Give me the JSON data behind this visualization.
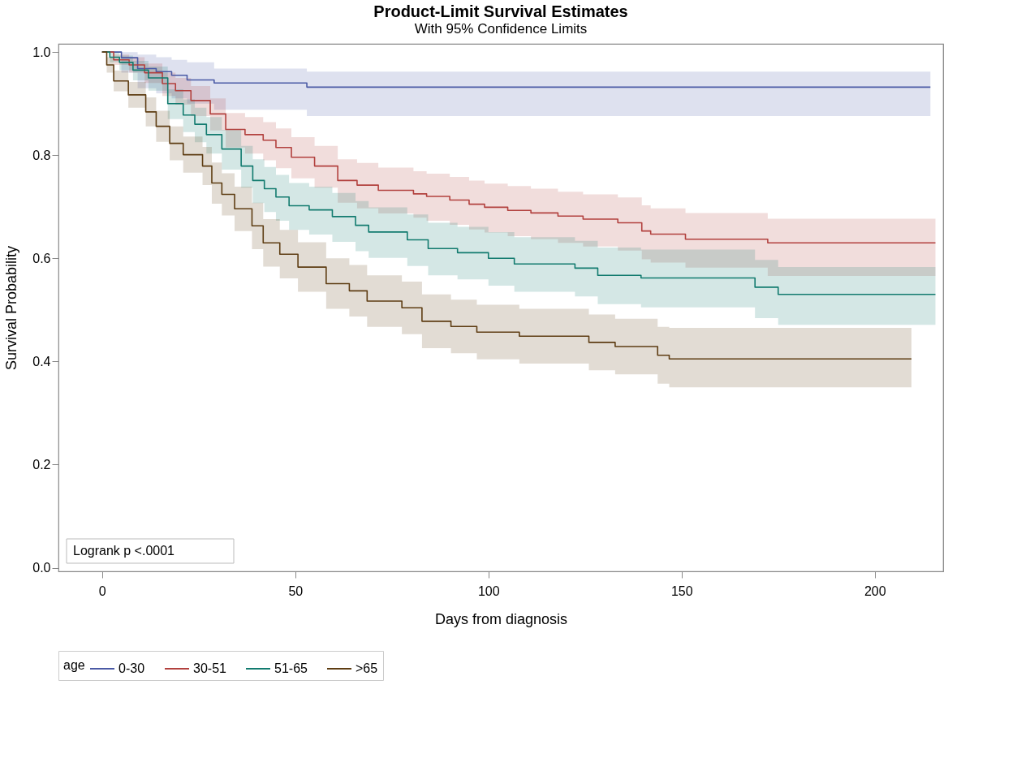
{
  "chart_data": {
    "type": "step",
    "title": "Product-Limit Survival Estimates",
    "subtitle": "With 95% Confidence Limits",
    "xlabel": "Days from diagnosis",
    "ylabel": "Survival Probability",
    "legend_title": "age",
    "legend": "bottom",
    "grid": false,
    "marker": "none",
    "line_style": "solid",
    "xlim": [
      -11.3,
      217.7
    ],
    "ylim": [
      -0.007,
      1.016
    ],
    "xticks": [
      0,
      50,
      100,
      150,
      200
    ],
    "yticks": [
      {
        "value": 0,
        "label": "0.0"
      },
      {
        "value": 0.2,
        "label": "0.2"
      },
      {
        "value": 0.4,
        "label": "0.4"
      },
      {
        "value": 0.6,
        "label": "0.6"
      },
      {
        "value": 0.8,
        "label": "0.8"
      },
      {
        "value": 1,
        "label": "1.0"
      }
    ],
    "annotations": [
      "Logrank p <.0001"
    ],
    "series": [
      {
        "name": "0-30",
        "color": "#4a5aa5",
        "x": [
          0,
          5,
          9.2,
          14,
          18,
          22,
          29,
          53,
          214.4
        ],
        "values": [
          1,
          0.989,
          0.968,
          0.962,
          0.955,
          0.946,
          0.94,
          0.932,
          0.932
        ],
        "lower": [
          1,
          0.96,
          0.93,
          0.92,
          0.91,
          0.9,
          0.888,
          0.876,
          0.876
        ],
        "upper": [
          1,
          1,
          0.995,
          0.99,
          0.985,
          0.98,
          0.968,
          0.962,
          0.962
        ]
      },
      {
        "name": "30-51",
        "color": "#b2413e",
        "x": [
          0,
          3,
          7,
          11,
          15.6,
          19,
          23,
          28,
          32,
          37,
          41.7,
          45,
          49,
          55,
          61,
          66,
          71.5,
          80.6,
          84,
          90,
          95,
          99,
          105,
          111,
          118,
          124.5,
          133.5,
          139.7,
          142,
          151,
          172.3,
          215.7
        ],
        "values": [
          1,
          0.985,
          0.975,
          0.96,
          0.939,
          0.925,
          0.906,
          0.88,
          0.85,
          0.84,
          0.829,
          0.815,
          0.796,
          0.779,
          0.751,
          0.742,
          0.732,
          0.725,
          0.72,
          0.713,
          0.705,
          0.699,
          0.693,
          0.688,
          0.682,
          0.676,
          0.669,
          0.653,
          0.647,
          0.637,
          0.63,
          0.63
        ],
        "lower": [
          1,
          0.975,
          0.96,
          0.94,
          0.915,
          0.898,
          0.876,
          0.848,
          0.815,
          0.803,
          0.79,
          0.775,
          0.755,
          0.737,
          0.708,
          0.697,
          0.687,
          0.679,
          0.673,
          0.665,
          0.656,
          0.65,
          0.643,
          0.637,
          0.63,
          0.623,
          0.615,
          0.598,
          0.592,
          0.582,
          0.566,
          0.566
        ],
        "upper": [
          1,
          0.995,
          0.99,
          0.978,
          0.96,
          0.95,
          0.934,
          0.91,
          0.882,
          0.874,
          0.864,
          0.852,
          0.835,
          0.818,
          0.792,
          0.785,
          0.776,
          0.769,
          0.764,
          0.758,
          0.751,
          0.745,
          0.74,
          0.735,
          0.729,
          0.724,
          0.718,
          0.703,
          0.697,
          0.688,
          0.677,
          0.677
        ]
      },
      {
        "name": "51-65",
        "color": "#127b6f",
        "x": [
          0,
          2,
          4.5,
          8,
          12,
          17,
          21,
          24,
          27,
          31,
          36,
          39,
          42,
          45,
          48.4,
          53.6,
          59.6,
          65.6,
          69,
          79,
          84.4,
          92,
          100,
          106.7,
          122.4,
          128.3,
          139.5,
          169,
          175,
          215.7
        ],
        "values": [
          1,
          0.99,
          0.98,
          0.965,
          0.95,
          0.9,
          0.878,
          0.86,
          0.84,
          0.812,
          0.779,
          0.751,
          0.735,
          0.719,
          0.702,
          0.694,
          0.681,
          0.664,
          0.651,
          0.636,
          0.619,
          0.611,
          0.6,
          0.589,
          0.581,
          0.567,
          0.562,
          0.544,
          0.53,
          0.53
        ],
        "lower": [
          1,
          0.98,
          0.965,
          0.945,
          0.925,
          0.87,
          0.845,
          0.825,
          0.803,
          0.772,
          0.737,
          0.707,
          0.69,
          0.673,
          0.655,
          0.646,
          0.632,
          0.614,
          0.601,
          0.585,
          0.567,
          0.559,
          0.547,
          0.535,
          0.526,
          0.511,
          0.505,
          0.484,
          0.471,
          0.471
        ],
        "upper": [
          1,
          1,
          0.993,
          0.983,
          0.972,
          0.928,
          0.908,
          0.892,
          0.874,
          0.849,
          0.818,
          0.792,
          0.777,
          0.762,
          0.746,
          0.739,
          0.727,
          0.711,
          0.699,
          0.685,
          0.669,
          0.661,
          0.651,
          0.641,
          0.634,
          0.621,
          0.617,
          0.597,
          0.583,
          0.583
        ]
      },
      {
        "name": ">65",
        "color": "#5e3d13",
        "x": [
          0,
          1.2,
          3,
          6.8,
          11.3,
          14,
          17.5,
          21,
          26,
          28.4,
          31,
          34.3,
          38.8,
          41.7,
          46,
          50.7,
          58,
          64,
          68.6,
          77.6,
          82.8,
          90.3,
          97,
          108,
          126,
          132.8,
          143.8,
          146.8,
          209.5
        ],
        "values": [
          1,
          0.975,
          0.944,
          0.917,
          0.884,
          0.856,
          0.823,
          0.801,
          0.779,
          0.746,
          0.724,
          0.696,
          0.663,
          0.63,
          0.608,
          0.583,
          0.551,
          0.537,
          0.517,
          0.504,
          0.478,
          0.468,
          0.457,
          0.449,
          0.437,
          0.429,
          0.412,
          0.405,
          0.405
        ],
        "lower": [
          1,
          0.96,
          0.924,
          0.892,
          0.856,
          0.826,
          0.79,
          0.766,
          0.742,
          0.706,
          0.683,
          0.653,
          0.618,
          0.584,
          0.561,
          0.535,
          0.502,
          0.487,
          0.467,
          0.453,
          0.426,
          0.416,
          0.404,
          0.396,
          0.383,
          0.375,
          0.357,
          0.35,
          0.35
        ],
        "upper": [
          1,
          0.99,
          0.964,
          0.942,
          0.912,
          0.886,
          0.856,
          0.836,
          0.816,
          0.786,
          0.765,
          0.739,
          0.708,
          0.676,
          0.655,
          0.631,
          0.6,
          0.587,
          0.567,
          0.555,
          0.53,
          0.52,
          0.51,
          0.502,
          0.491,
          0.483,
          0.467,
          0.465,
          0.465
        ]
      }
    ]
  }
}
